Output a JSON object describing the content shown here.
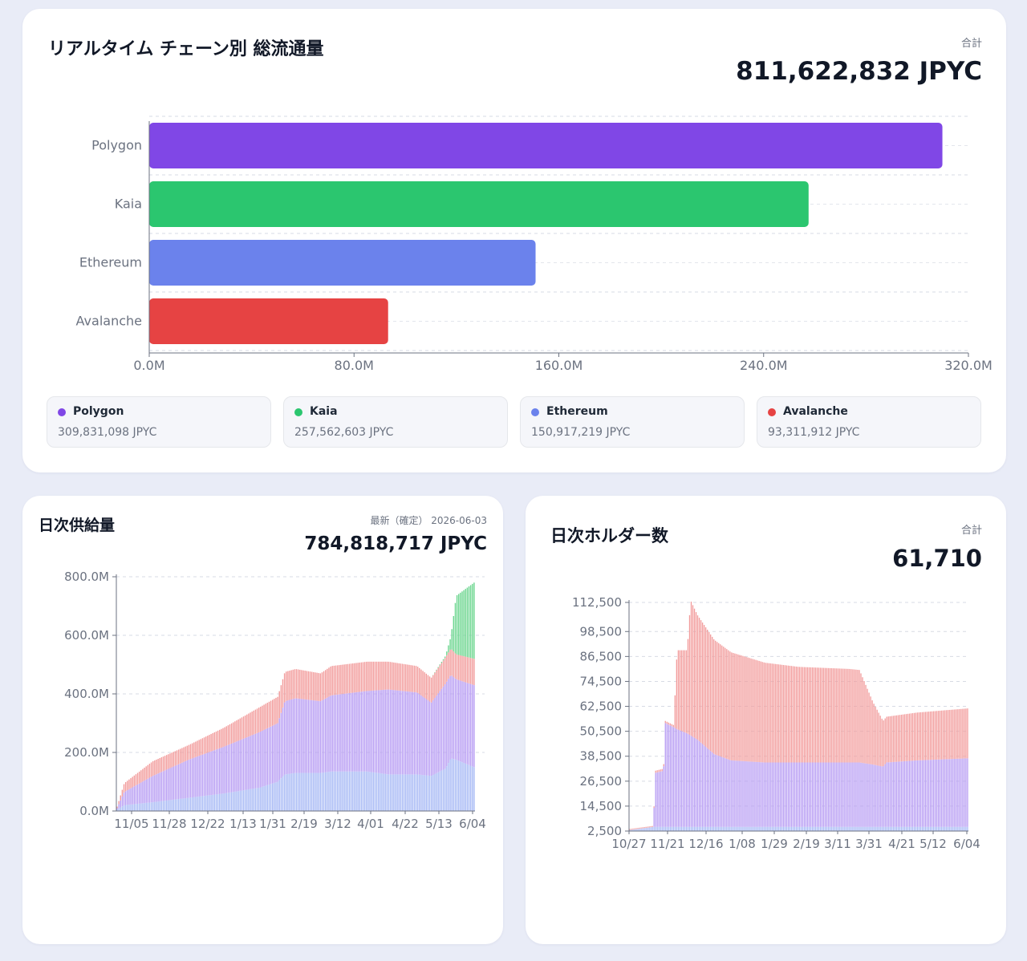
{
  "top": {
    "title": "リアルタイム チェーン別 総流通量",
    "total_label": "合計",
    "total_value": "811,622,832 JPYC",
    "legend": [
      {
        "name": "Polygon",
        "value": "309,831,098 JPYC",
        "color": "#8047e6"
      },
      {
        "name": "Kaia",
        "value": "257,562,603 JPYC",
        "color": "#2bc66f"
      },
      {
        "name": "Ethereum",
        "value": "150,917,219 JPYC",
        "color": "#6b82ec"
      },
      {
        "name": "Avalanche",
        "value": "93,311,912 JPYC",
        "color": "#e64343"
      }
    ]
  },
  "supply": {
    "title": "日次供給量",
    "latest_label": "最新（確定） 2026-06-03",
    "latest_value": "784,818,717 JPYC"
  },
  "holders": {
    "title": "日次ホルダー数",
    "total_label": "合計",
    "total_value": "61,710"
  },
  "chart_data": [
    {
      "type": "bar",
      "orientation": "horizontal",
      "categories": [
        "Polygon",
        "Kaia",
        "Ethereum",
        "Avalanche"
      ],
      "values": [
        309831098,
        257562603,
        150917219,
        93311912
      ],
      "colors": [
        "#8047e6",
        "#2bc66f",
        "#6b82ec",
        "#e64343"
      ],
      "xlim": [
        0,
        320000000
      ],
      "xticks": [
        "0.0M",
        "80.0M",
        "160.0M",
        "240.0M",
        "320.0M"
      ],
      "grid": true
    },
    {
      "type": "bar",
      "stacked": true,
      "ylim": [
        0,
        800000000
      ],
      "yticks": [
        "0.0M",
        "200.0M",
        "400.0M",
        "600.0M",
        "800.0M"
      ],
      "xticks": [
        "11/05",
        "11/28",
        "12/22",
        "1/13",
        "1/31",
        "2/19",
        "3/12",
        "4/01",
        "4/22",
        "5/13",
        "6/04"
      ],
      "colors": {
        "Ethereum": "#a7b9f5",
        "Polygon": "#b79cf3",
        "Avalanche": "#f29b9b",
        "Kaia": "#6dd690"
      },
      "series_order": [
        "Ethereum",
        "Polygon",
        "Avalanche",
        "Kaia"
      ],
      "keyframes": [
        {
          "t": 0,
          "eth": 5,
          "poly": 5,
          "ava": 5,
          "kaia": 0
        },
        {
          "t": 0.02,
          "eth": 20,
          "poly": 45,
          "ava": 30,
          "kaia": 0
        },
        {
          "t": 0.1,
          "eth": 30,
          "poly": 90,
          "ava": 50,
          "kaia": 0
        },
        {
          "t": 0.2,
          "eth": 45,
          "poly": 130,
          "ava": 50,
          "kaia": 0
        },
        {
          "t": 0.3,
          "eth": 60,
          "poly": 160,
          "ava": 65,
          "kaia": 0
        },
        {
          "t": 0.4,
          "eth": 80,
          "poly": 190,
          "ava": 85,
          "kaia": 0
        },
        {
          "t": 0.45,
          "eth": 100,
          "poly": 200,
          "ava": 90,
          "kaia": 0
        },
        {
          "t": 0.47,
          "eth": 125,
          "poly": 250,
          "ava": 100,
          "kaia": 0
        },
        {
          "t": 0.5,
          "eth": 130,
          "poly": 255,
          "ava": 100,
          "kaia": 0
        },
        {
          "t": 0.57,
          "eth": 130,
          "poly": 245,
          "ava": 95,
          "kaia": 0
        },
        {
          "t": 0.6,
          "eth": 135,
          "poly": 260,
          "ava": 100,
          "kaia": 0
        },
        {
          "t": 0.7,
          "eth": 135,
          "poly": 275,
          "ava": 100,
          "kaia": 0
        },
        {
          "t": 0.76,
          "eth": 125,
          "poly": 290,
          "ava": 95,
          "kaia": 0
        },
        {
          "t": 0.84,
          "eth": 125,
          "poly": 280,
          "ava": 90,
          "kaia": 0
        },
        {
          "t": 0.88,
          "eth": 120,
          "poly": 250,
          "ava": 85,
          "kaia": 0
        },
        {
          "t": 0.92,
          "eth": 145,
          "poly": 290,
          "ava": 90,
          "kaia": 5
        },
        {
          "t": 0.935,
          "eth": 180,
          "poly": 285,
          "ava": 90,
          "kaia": 40
        },
        {
          "t": 0.95,
          "eth": 175,
          "poly": 275,
          "ava": 85,
          "kaia": 200
        },
        {
          "t": 1.0,
          "eth": 150,
          "poly": 280,
          "ava": 90,
          "kaia": 260
        }
      ]
    },
    {
      "type": "bar",
      "stacked": true,
      "ylim": [
        2500,
        112500
      ],
      "yticks": [
        "2,500",
        "14,500",
        "26,500",
        "38,500",
        "50,500",
        "62,500",
        "74,500",
        "86,500",
        "98,500",
        "112,500"
      ],
      "xticks": [
        "10/27",
        "11/21",
        "12/16",
        "1/08",
        "1/29",
        "2/19",
        "3/11",
        "3/31",
        "4/21",
        "5/12",
        "6/04"
      ],
      "colors": {
        "Ethereum": "#a7b9f5",
        "Polygon": "#b79cf3",
        "Avalanche": "#f29b9b",
        "Kaia": "#6dd690"
      },
      "keyframes": [
        {
          "t": 0,
          "eth": 3000,
          "poly": 0,
          "ava": 500
        },
        {
          "t": 0.07,
          "eth": 4500,
          "poly": 0,
          "ava": 500
        },
        {
          "t": 0.075,
          "eth": 4500,
          "poly": 26000,
          "ava": 1000
        },
        {
          "t": 0.1,
          "eth": 4500,
          "poly": 27000,
          "ava": 1000
        },
        {
          "t": 0.105,
          "eth": 4500,
          "poly": 50000,
          "ava": 1000
        },
        {
          "t": 0.13,
          "eth": 4500,
          "poly": 48000,
          "ava": 1000
        },
        {
          "t": 0.14,
          "eth": 4500,
          "poly": 47000,
          "ava": 38000
        },
        {
          "t": 0.17,
          "eth": 4500,
          "poly": 45000,
          "ava": 40000
        },
        {
          "t": 0.18,
          "eth": 4500,
          "poly": 44000,
          "ava": 65000
        },
        {
          "t": 0.2,
          "eth": 4500,
          "poly": 42000,
          "ava": 60000
        },
        {
          "t": 0.25,
          "eth": 4500,
          "poly": 35000,
          "ava": 55000
        },
        {
          "t": 0.3,
          "eth": 4500,
          "poly": 32000,
          "ava": 52000
        },
        {
          "t": 0.4,
          "eth": 4500,
          "poly": 31000,
          "ava": 48000
        },
        {
          "t": 0.5,
          "eth": 4500,
          "poly": 31000,
          "ava": 46000
        },
        {
          "t": 0.65,
          "eth": 4500,
          "poly": 31000,
          "ava": 45000
        },
        {
          "t": 0.68,
          "eth": 4500,
          "poly": 31000,
          "ava": 44500
        },
        {
          "t": 0.72,
          "eth": 4500,
          "poly": 30000,
          "ava": 30000
        },
        {
          "t": 0.75,
          "eth": 4500,
          "poly": 29000,
          "ava": 22000
        },
        {
          "t": 0.76,
          "eth": 4500,
          "poly": 31000,
          "ava": 22000
        },
        {
          "t": 0.85,
          "eth": 4500,
          "poly": 32000,
          "ava": 23000
        },
        {
          "t": 1.0,
          "eth": 4500,
          "poly": 33000,
          "ava": 24000
        }
      ]
    }
  ]
}
